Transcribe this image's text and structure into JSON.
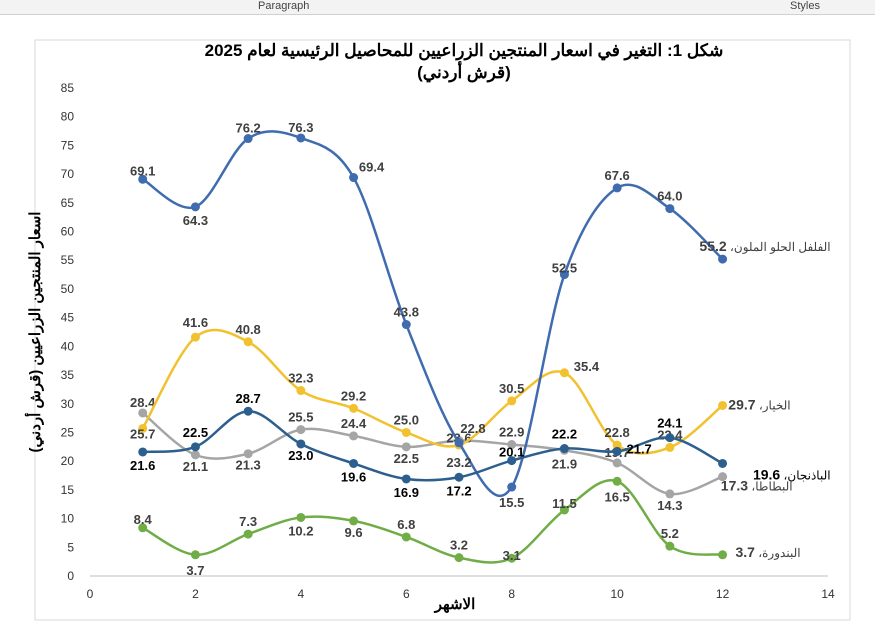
{
  "toolbar": {
    "paragraph": "Paragraph",
    "styles": "Styles"
  },
  "chart_data": {
    "type": "line",
    "title": "شكل 1: التغير في اسعار المنتجين الزراعيين للمحاصيل الرئيسية لعام 2025",
    "subtitle": "(قرش أردني)",
    "xlabel": "الاشهر",
    "ylabel": "اسعار المنتجين الزراعيين (قرش أردني)",
    "xlim": [
      0,
      14
    ],
    "ylim": [
      0,
      85
    ],
    "xticks": [
      0,
      2,
      4,
      6,
      8,
      10,
      12,
      14
    ],
    "yticks": [
      0,
      5,
      10,
      15,
      20,
      25,
      30,
      35,
      40,
      45,
      50,
      55,
      60,
      65,
      70,
      75,
      80,
      85
    ],
    "x": [
      1,
      2,
      3,
      4,
      5,
      6,
      7,
      8,
      9,
      10,
      11,
      12
    ],
    "series": [
      {
        "name": "الفلفل الحلو الملون",
        "color": "#3F6BAF",
        "labelColor": "#404040",
        "values": [
          69.1,
          64.3,
          76.2,
          76.3,
          69.4,
          43.8,
          23.2,
          15.5,
          52.5,
          67.6,
          64.0,
          55.2
        ]
      },
      {
        "name": "الخيار",
        "color": "#F2C12E",
        "labelColor": "#404040",
        "values": [
          25.7,
          41.6,
          40.8,
          32.3,
          29.2,
          25.0,
          22.8,
          30.5,
          35.4,
          22.8,
          22.4,
          29.7
        ]
      },
      {
        "name": "الباذنجان",
        "color": "#2C5F8E",
        "labelColor": "#000000",
        "values": [
          21.6,
          22.5,
          28.7,
          23.0,
          19.6,
          16.9,
          17.2,
          20.1,
          22.2,
          21.7,
          24.1,
          19.6
        ]
      },
      {
        "name": "البطاطا",
        "color": "#A5A5A5",
        "labelColor": "#404040",
        "values": [
          28.4,
          21.1,
          21.3,
          25.5,
          24.4,
          22.5,
          23.6,
          22.9,
          21.9,
          19.7,
          14.3,
          17.3
        ]
      },
      {
        "name": "البندورة",
        "color": "#70AD47",
        "labelColor": "#404040",
        "values": [
          8.4,
          3.7,
          7.3,
          10.2,
          9.6,
          6.8,
          3.2,
          3.1,
          11.5,
          16.5,
          5.2,
          3.7
        ]
      }
    ]
  }
}
